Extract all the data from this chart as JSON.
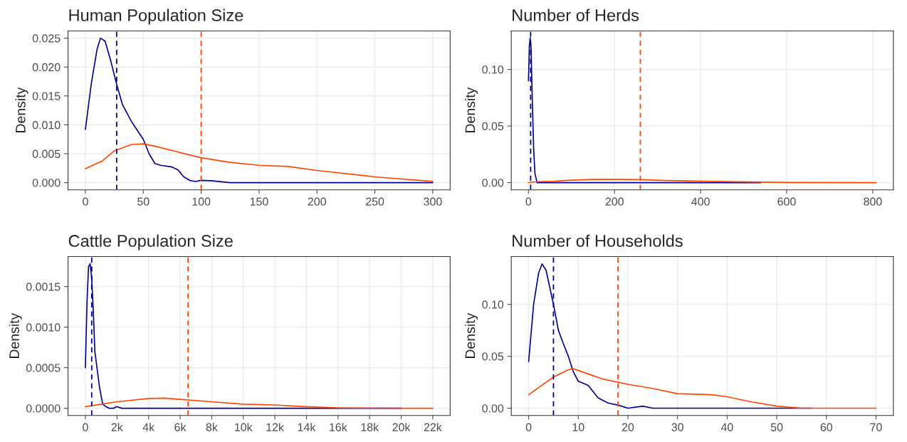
{
  "chart_data": [
    {
      "type": "line",
      "title": "Human Population Size",
      "ylabel": "Density",
      "xlim": [
        -15,
        315
      ],
      "xticks": [
        0,
        50,
        100,
        150,
        200,
        250,
        300
      ],
      "ylim": [
        -0.00125,
        0.02625
      ],
      "yticks": [
        {
          "value": 0,
          "label": "0.000"
        },
        {
          "value": 0.005,
          "label": "0.005"
        },
        {
          "value": 0.01,
          "label": "0.010"
        },
        {
          "value": 0.015,
          "label": "0.015"
        },
        {
          "value": 0.02,
          "label": "0.020"
        },
        {
          "value": 0.025,
          "label": "0.025"
        }
      ],
      "grid": true,
      "line_style": "solid",
      "series": [
        {
          "color": "#00008b",
          "x": [
            0,
            5,
            10,
            13,
            17,
            22,
            27,
            32,
            40,
            50,
            55,
            60,
            65,
            75,
            80,
            85,
            90,
            95,
            100,
            110,
            125,
            150,
            200,
            300
          ],
          "values": [
            0.0092,
            0.017,
            0.023,
            0.025,
            0.0245,
            0.021,
            0.017,
            0.0135,
            0.0105,
            0.0075,
            0.005,
            0.0033,
            0.003,
            0.0027,
            0.0022,
            0.001,
            0.0004,
            0.0002,
            0.0004,
            0.0003,
            0.0,
            0.0,
            0.0,
            0.0
          ]
        },
        {
          "color": "#ff4500",
          "x": [
            0,
            15,
            25,
            40,
            50,
            60,
            80,
            100,
            125,
            150,
            175,
            200,
            250,
            300
          ],
          "values": [
            0.0024,
            0.0038,
            0.0055,
            0.0066,
            0.0067,
            0.0063,
            0.0053,
            0.0043,
            0.0035,
            0.003,
            0.0028,
            0.0021,
            0.001,
            0.0002
          ]
        }
      ],
      "ref_lines": [
        {
          "axis": "x",
          "value": 27,
          "color": "#00008b",
          "line_style": "dashed"
        },
        {
          "axis": "x",
          "value": 100,
          "color": "#ff4500",
          "line_style": "dashed"
        }
      ]
    },
    {
      "type": "line",
      "title": "Number of Herds",
      "ylabel": "Density",
      "xlim": [
        -40,
        848
      ],
      "xticks": [
        0,
        200,
        400,
        600,
        800
      ],
      "ylim": [
        -0.0064,
        0.134
      ],
      "yticks": [
        {
          "value": 0,
          "label": "0.00"
        },
        {
          "value": 0.05,
          "label": "0.05"
        },
        {
          "value": 0.1,
          "label": "0.10"
        }
      ],
      "grid": true,
      "line_style": "solid",
      "series": [
        {
          "color": "#00008b",
          "x": [
            0,
            2,
            4,
            6,
            9,
            12,
            15,
            20,
            50,
            540
          ],
          "values": [
            0.09,
            0.12,
            0.128,
            0.118,
            0.07,
            0.03,
            0.008,
            0.0,
            0.0,
            0.0
          ]
        },
        {
          "color": "#ff4500",
          "x": [
            0,
            20,
            60,
            100,
            150,
            200,
            260,
            320,
            430,
            540,
            600,
            808
          ],
          "values": [
            0.0,
            0.0008,
            0.0012,
            0.0022,
            0.0028,
            0.0028,
            0.0026,
            0.0018,
            0.001,
            0.0004,
            0.0001,
            0.0
          ]
        }
      ],
      "ref_lines": [
        {
          "axis": "x",
          "value": 5,
          "color": "#00008b",
          "line_style": "dashed"
        },
        {
          "axis": "x",
          "value": 260,
          "color": "#ff4500",
          "line_style": "dashed"
        }
      ]
    },
    {
      "type": "line",
      "title": "Cattle Population Size",
      "ylabel": "Density",
      "xlim": [
        -1100,
        23100
      ],
      "xticks": [
        0,
        {
          "value": 2000,
          "label": "2k"
        },
        {
          "value": 4000,
          "label": "4k"
        },
        {
          "value": 6000,
          "label": "6k"
        },
        {
          "value": 8000,
          "label": "8k"
        },
        {
          "value": 10000,
          "label": "10k"
        },
        {
          "value": 12000,
          "label": "12k"
        },
        {
          "value": 14000,
          "label": "14k"
        },
        {
          "value": 16000,
          "label": "16k"
        },
        {
          "value": 18000,
          "label": "18k"
        },
        {
          "value": 20000,
          "label": "20k"
        },
        {
          "value": 22000,
          "label": "22k"
        }
      ],
      "ylim": [
        -8.9e-05,
        0.00187
      ],
      "yticks": [
        {
          "value": 0,
          "label": "0.0000"
        },
        {
          "value": 0.0005,
          "label": "0.0005"
        },
        {
          "value": 0.001,
          "label": "0.0010"
        },
        {
          "value": 0.0015,
          "label": "0.0015"
        }
      ],
      "grid": true,
      "line_style": "solid",
      "series": [
        {
          "color": "#00008b",
          "x": [
            0,
            100,
            200,
            300,
            400,
            500,
            600,
            800,
            900,
            1000,
            1100,
            1300,
            1500,
            1800,
            2000,
            2300,
            4000,
            20000
          ],
          "values": [
            0.0005,
            0.0013,
            0.00175,
            0.00178,
            0.0016,
            0.0012,
            0.0007,
            0.0004,
            0.00025,
            0.00015,
            5e-05,
            2e-05,
            0.0,
            0.0,
            2e-05,
            0.0,
            0.0,
            0.0
          ]
        },
        {
          "color": "#ff4500",
          "x": [
            0,
            2000,
            4000,
            5000,
            6000,
            8000,
            10000,
            12000,
            14000,
            16000,
            20000,
            22000
          ],
          "values": [
            2e-05,
            8e-05,
            0.00012,
            0.000125,
            0.00011,
            8e-05,
            5e-05,
            4e-05,
            2e-05,
            5e-06,
            0.0,
            0.0
          ]
        }
      ],
      "ref_lines": [
        {
          "axis": "x",
          "value": 400,
          "color": "#00008b",
          "line_style": "dashed"
        },
        {
          "axis": "x",
          "value": 6500,
          "color": "#ff4500",
          "line_style": "dashed"
        }
      ]
    },
    {
      "type": "line",
      "title": "Number of Households",
      "ylabel": "Density",
      "xlim": [
        -3.5,
        73.5
      ],
      "xticks": [
        0,
        10,
        20,
        30,
        40,
        50,
        60,
        70
      ],
      "ylim": [
        -0.007,
        0.146
      ],
      "yticks": [
        {
          "value": 0,
          "label": "0.00"
        },
        {
          "value": 0.05,
          "label": "0.05"
        },
        {
          "value": 0.1,
          "label": "0.10"
        }
      ],
      "grid": true,
      "line_style": "solid",
      "series": [
        {
          "color": "#00008b",
          "x": [
            0,
            1,
            2,
            2.7,
            3.5,
            5,
            6,
            7,
            8,
            9,
            10,
            12,
            14,
            16,
            18,
            20,
            23,
            25,
            57
          ],
          "values": [
            0.045,
            0.1,
            0.13,
            0.139,
            0.133,
            0.1,
            0.075,
            0.062,
            0.05,
            0.035,
            0.026,
            0.022,
            0.01,
            0.005,
            0.003,
            0.0,
            0.002,
            0.0,
            0.0
          ]
        },
        {
          "color": "#ff4500",
          "x": [
            0,
            5,
            8,
            9,
            12,
            15,
            20,
            25,
            30,
            37,
            40,
            45,
            50,
            55,
            70
          ],
          "values": [
            0.013,
            0.03,
            0.037,
            0.038,
            0.033,
            0.028,
            0.023,
            0.019,
            0.014,
            0.013,
            0.011,
            0.006,
            0.002,
            0.0,
            0.0
          ]
        }
      ],
      "ref_lines": [
        {
          "axis": "x",
          "value": 5,
          "color": "#00008b",
          "line_style": "dashed"
        },
        {
          "axis": "x",
          "value": 18,
          "color": "#ff4500",
          "line_style": "dashed"
        }
      ]
    }
  ]
}
